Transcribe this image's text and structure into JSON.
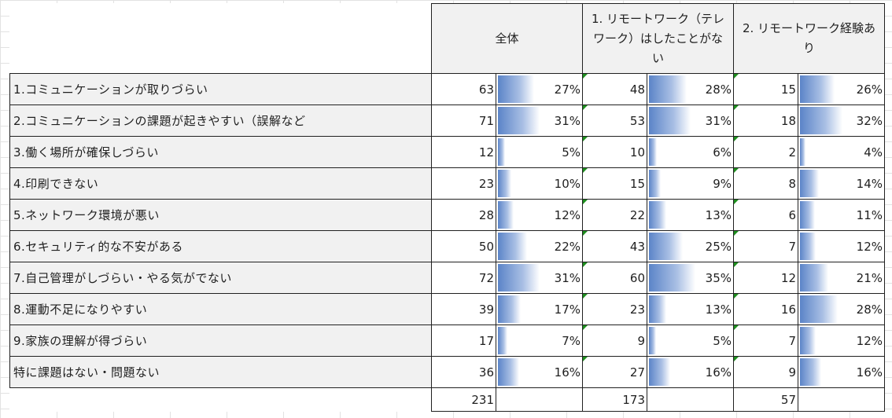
{
  "headers": {
    "all": "全体",
    "no_remote": "1. リモートワーク（テレワーク）はしたことがない",
    "remote": "2. リモートワーク経験あり"
  },
  "rows": [
    {
      "label": "1.コミュニケーションが取りづらい",
      "all_n": "63",
      "all_pct": "27%",
      "all_frac": 0.27,
      "nr_n": "48",
      "nr_pct": "28%",
      "nr_frac": 0.28,
      "r_n": "15",
      "r_pct": "26%",
      "r_frac": 0.26
    },
    {
      "label": "2.コミュニケーションの課題が起きやすい（誤解など",
      "all_n": "71",
      "all_pct": "31%",
      "all_frac": 0.31,
      "nr_n": "53",
      "nr_pct": "31%",
      "nr_frac": 0.31,
      "r_n": "18",
      "r_pct": "32%",
      "r_frac": 0.32
    },
    {
      "label": "3.働く場所が確保しづらい",
      "all_n": "12",
      "all_pct": "5%",
      "all_frac": 0.05,
      "nr_n": "10",
      "nr_pct": "6%",
      "nr_frac": 0.06,
      "r_n": "2",
      "r_pct": "4%",
      "r_frac": 0.04
    },
    {
      "label": "4.印刷できない",
      "all_n": "23",
      "all_pct": "10%",
      "all_frac": 0.1,
      "nr_n": "15",
      "nr_pct": "9%",
      "nr_frac": 0.09,
      "r_n": "8",
      "r_pct": "14%",
      "r_frac": 0.14
    },
    {
      "label": "5.ネットワーク環境が悪い",
      "all_n": "28",
      "all_pct": "12%",
      "all_frac": 0.12,
      "nr_n": "22",
      "nr_pct": "13%",
      "nr_frac": 0.13,
      "r_n": "6",
      "r_pct": "11%",
      "r_frac": 0.11
    },
    {
      "label": "6.セキュリティ的な不安がある",
      "all_n": "50",
      "all_pct": "22%",
      "all_frac": 0.22,
      "nr_n": "43",
      "nr_pct": "25%",
      "nr_frac": 0.25,
      "r_n": "7",
      "r_pct": "12%",
      "r_frac": 0.12
    },
    {
      "label": "7.自己管理がしづらい・やる気がでない",
      "all_n": "72",
      "all_pct": "31%",
      "all_frac": 0.31,
      "nr_n": "60",
      "nr_pct": "35%",
      "nr_frac": 0.35,
      "r_n": "12",
      "r_pct": "21%",
      "r_frac": 0.21
    },
    {
      "label": "8.運動不足になりやすい",
      "all_n": "39",
      "all_pct": "17%",
      "all_frac": 0.17,
      "nr_n": "23",
      "nr_pct": "13%",
      "nr_frac": 0.13,
      "r_n": "16",
      "r_pct": "28%",
      "r_frac": 0.28
    },
    {
      "label": "9.家族の理解が得づらい",
      "all_n": "17",
      "all_pct": "7%",
      "all_frac": 0.07,
      "nr_n": "9",
      "nr_pct": "5%",
      "nr_frac": 0.05,
      "r_n": "7",
      "r_pct": "12%",
      "r_frac": 0.12
    },
    {
      "label": "特に課題はない・問題ない",
      "all_n": "36",
      "all_pct": "16%",
      "all_frac": 0.16,
      "nr_n": "27",
      "nr_pct": "16%",
      "nr_frac": 0.16,
      "r_n": "9",
      "r_pct": "16%",
      "r_frac": 0.16
    }
  ],
  "totals": {
    "all": "231",
    "no_remote": "173",
    "remote": "57"
  },
  "colors": {
    "bar_start": "#5b84c8",
    "bar_mid": "#a9bfe4",
    "header_bg": "#f1f1f1",
    "comment_marker": "#1e8e1e"
  }
}
